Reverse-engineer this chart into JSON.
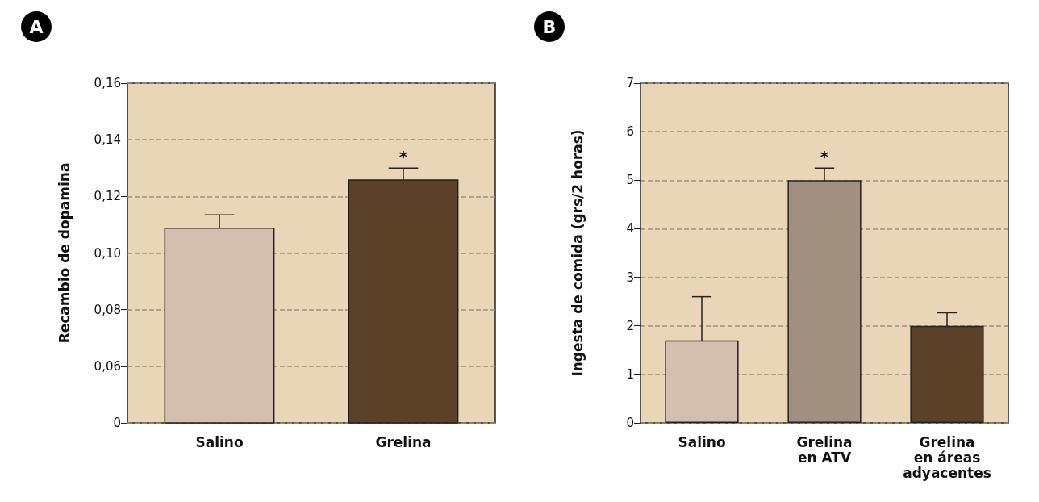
{
  "chart_data": [
    {
      "type": "bar",
      "ylabel": "Recambio de dopamina",
      "categories": [
        "Salino",
        "Grelina"
      ],
      "values": [
        0.109,
        0.126
      ],
      "colors": [
        "#d4bfae",
        "#5a4128"
      ],
      "errors": [
        0.0045,
        0.004
      ],
      "ylim": [
        0.04,
        0.16
      ],
      "yticks": [
        {
          "value": 0.04,
          "label": "0"
        },
        {
          "value": 0.06,
          "label": "0,06"
        },
        {
          "value": 0.08,
          "label": "0,08"
        },
        {
          "value": 0.1,
          "label": "0,10"
        },
        {
          "value": 0.12,
          "label": "0,12"
        },
        {
          "value": 0.14,
          "label": "0,14"
        },
        {
          "value": 0.16,
          "label": "0,16"
        }
      ],
      "grid": "y",
      "line_style": "dashed",
      "annotations": [
        "A",
        {
          "text": "*",
          "x": "Grelina",
          "y": 0.13
        }
      ]
    },
    {
      "type": "bar",
      "ylabel": "Ingesta de comida (grs/2 horas)",
      "categories": [
        "Salino",
        "Grelina\nen ATV",
        "Grelina\nen áreas\nadyacentes"
      ],
      "values": [
        1.7,
        5.0,
        2.0
      ],
      "colors": [
        "#d4bfae",
        "#a09080",
        "#5a4128"
      ],
      "errors": [
        0.9,
        0.25,
        0.27
      ],
      "ylim": [
        0,
        7
      ],
      "yticks": [
        0,
        1,
        2,
        3,
        4,
        5,
        6,
        7
      ],
      "grid": "y",
      "line_style": "dashed",
      "annotations": [
        "B",
        {
          "text": "*",
          "x": "Grelina\nen ATV",
          "y": 5.25
        }
      ]
    }
  ]
}
